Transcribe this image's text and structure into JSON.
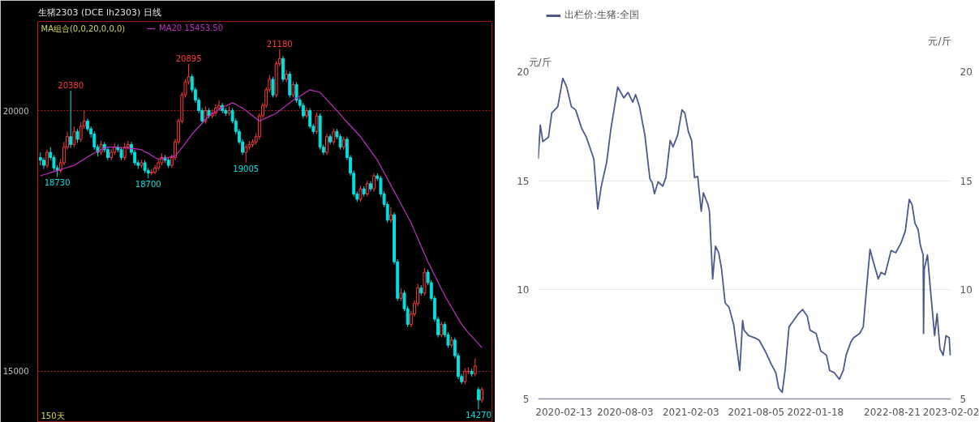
{
  "chart_data": [
    {
      "type": "candlestick",
      "title": "生猪2303 (DCE lh2303) 日线",
      "annotations": [
        "MA组合(0,0,20,0,0,0)",
        "150天"
      ],
      "categories": [
        null,
        null,
        null,
        null,
        null,
        null,
        null,
        null,
        null,
        null,
        null,
        null,
        null,
        null,
        null,
        null,
        null,
        null,
        null,
        null,
        null,
        null,
        null,
        null,
        null,
        null,
        null,
        null,
        null,
        null,
        null,
        null,
        null,
        null,
        null,
        null,
        null,
        null,
        null,
        null,
        null,
        null,
        null,
        null,
        null,
        null,
        null,
        null,
        null,
        null,
        null,
        null,
        null,
        null,
        null,
        null,
        null,
        null,
        null,
        null,
        null,
        null,
        null,
        null,
        null,
        null,
        null,
        null,
        null,
        null,
        null,
        null,
        null,
        null,
        null,
        null,
        null,
        null,
        null,
        null,
        null,
        null,
        null,
        null,
        null,
        null,
        null,
        null,
        null,
        null,
        null,
        null,
        null,
        null,
        null,
        null,
        null,
        null,
        null,
        null,
        null,
        null,
        null,
        null,
        null,
        null,
        null,
        null,
        null,
        null,
        null,
        null,
        null,
        null,
        null,
        null,
        null,
        null,
        null,
        null,
        null,
        null,
        null,
        null,
        null,
        null,
        null,
        null,
        null,
        null,
        null,
        null
      ],
      "ohlc": [
        [
          19100,
          19200,
          18950,
          19050
        ],
        [
          19050,
          19100,
          18880,
          18950
        ],
        [
          18950,
          19250,
          18900,
          19200
        ],
        [
          19200,
          19300,
          19050,
          19100
        ],
        [
          19100,
          19150,
          18850,
          18900
        ],
        [
          18900,
          18950,
          18730,
          18850
        ],
        [
          18850,
          19080,
          18800,
          19000
        ],
        [
          19000,
          19400,
          18950,
          19300
        ],
        [
          19300,
          19600,
          19250,
          19500
        ],
        [
          19500,
          20380,
          19280,
          19350
        ],
        [
          19350,
          19700,
          19300,
          19600
        ],
        [
          19600,
          19650,
          19380,
          19450
        ],
        [
          19450,
          19780,
          19400,
          19700
        ],
        [
          19700,
          20000,
          19650,
          19800
        ],
        [
          19800,
          19850,
          19600,
          19650
        ],
        [
          19650,
          19700,
          19480,
          19550
        ],
        [
          19550,
          19600,
          19250,
          19300
        ],
        [
          19300,
          19350,
          19120,
          19200
        ],
        [
          19200,
          19420,
          19150,
          19350
        ],
        [
          19350,
          19400,
          19200,
          19250
        ],
        [
          19250,
          19300,
          19050,
          19100
        ],
        [
          19100,
          19260,
          19050,
          19200
        ],
        [
          19200,
          19380,
          19150,
          19300
        ],
        [
          19300,
          19350,
          19200,
          19250
        ],
        [
          19250,
          19300,
          19050,
          19100
        ],
        [
          19100,
          19380,
          19050,
          19300
        ],
        [
          19300,
          19420,
          19250,
          19350
        ],
        [
          19350,
          19400,
          19150,
          19200
        ],
        [
          19200,
          19250,
          18950,
          19000
        ],
        [
          19000,
          19050,
          18880,
          18950
        ],
        [
          18950,
          19060,
          18900,
          19000
        ],
        [
          19000,
          19050,
          18800,
          18850
        ],
        [
          18850,
          18900,
          18700,
          18800
        ],
        [
          18800,
          18880,
          18760,
          18820
        ],
        [
          18820,
          18960,
          18780,
          18900
        ],
        [
          18900,
          19060,
          18850,
          19000
        ],
        [
          19000,
          19180,
          18950,
          19100
        ],
        [
          19100,
          19150,
          19000,
          19050
        ],
        [
          19050,
          19100,
          18900,
          18950
        ],
        [
          18950,
          19160,
          18900,
          19100
        ],
        [
          19100,
          19460,
          19050,
          19400
        ],
        [
          19400,
          19850,
          19350,
          19800
        ],
        [
          19800,
          20350,
          19750,
          20300
        ],
        [
          20300,
          20600,
          20250,
          20550
        ],
        [
          20550,
          20895,
          20500,
          20650
        ],
        [
          20650,
          20700,
          20350,
          20400
        ],
        [
          20400,
          20450,
          20150,
          20200
        ],
        [
          20200,
          20250,
          19950,
          20000
        ],
        [
          20000,
          20050,
          19750,
          19800
        ],
        [
          19800,
          20080,
          19750,
          20000
        ],
        [
          20000,
          20050,
          19850,
          19900
        ],
        [
          19900,
          20020,
          19850,
          19950
        ],
        [
          19950,
          20120,
          19900,
          20050
        ],
        [
          20050,
          20200,
          20000,
          20100
        ],
        [
          20100,
          20150,
          19950,
          20000
        ],
        [
          20000,
          20050,
          19900,
          19950
        ],
        [
          19950,
          20080,
          19900,
          20000
        ],
        [
          20000,
          20050,
          19750,
          19800
        ],
        [
          19800,
          19850,
          19550,
          19600
        ],
        [
          19600,
          19650,
          19350,
          19400
        ],
        [
          19400,
          19450,
          19150,
          19200
        ],
        [
          19200,
          19350,
          19005,
          19300
        ],
        [
          19300,
          19420,
          19250,
          19350
        ],
        [
          19350,
          19450,
          19300,
          19400
        ],
        [
          19400,
          19560,
          19350,
          19500
        ],
        [
          19500,
          19950,
          19450,
          19900
        ],
        [
          19900,
          20150,
          19850,
          20100
        ],
        [
          20100,
          20450,
          20050,
          20400
        ],
        [
          20400,
          20680,
          20350,
          20600
        ],
        [
          20600,
          20650,
          20250,
          20300
        ],
        [
          20300,
          20950,
          20250,
          20900
        ],
        [
          20900,
          21180,
          20850,
          21000
        ],
        [
          21000,
          21050,
          20550,
          20600
        ],
        [
          20600,
          20780,
          20550,
          20700
        ],
        [
          20700,
          20750,
          20250,
          20300
        ],
        [
          20300,
          20560,
          20250,
          20500
        ],
        [
          20500,
          20550,
          20150,
          20200
        ],
        [
          20200,
          20250,
          20050,
          20100
        ],
        [
          20100,
          20150,
          19850,
          19900
        ],
        [
          19900,
          20060,
          19850,
          20000
        ],
        [
          20000,
          20050,
          19650,
          19700
        ],
        [
          19700,
          19750,
          19550,
          19600
        ],
        [
          19600,
          19960,
          19550,
          19900
        ],
        [
          19900,
          19950,
          19250,
          19300
        ],
        [
          19300,
          19350,
          19150,
          19200
        ],
        [
          19200,
          19560,
          19150,
          19500
        ],
        [
          19500,
          19550,
          19350,
          19400
        ],
        [
          19400,
          19660,
          19350,
          19600
        ],
        [
          19600,
          19650,
          19450,
          19500
        ],
        [
          19500,
          19550,
          19250,
          19300
        ],
        [
          19300,
          19500,
          19250,
          19450
        ],
        [
          19450,
          19500,
          19050,
          19100
        ],
        [
          19100,
          19150,
          18750,
          18800
        ],
        [
          18800,
          18850,
          18350,
          18400
        ],
        [
          18400,
          18450,
          18250,
          18300
        ],
        [
          18300,
          18560,
          18250,
          18500
        ],
        [
          18500,
          18550,
          18350,
          18400
        ],
        [
          18400,
          18660,
          18350,
          18600
        ],
        [
          18600,
          18650,
          18450,
          18500
        ],
        [
          18500,
          18800,
          18450,
          18750
        ],
        [
          18750,
          18800,
          18650,
          18700
        ],
        [
          18700,
          18750,
          18350,
          18400
        ],
        [
          18400,
          18450,
          18150,
          18200
        ],
        [
          18200,
          18250,
          17850,
          17900
        ],
        [
          17900,
          18150,
          17850,
          18000
        ],
        [
          18000,
          18050,
          17050,
          17100
        ],
        [
          17100,
          17150,
          16350,
          16400
        ],
        [
          16400,
          16600,
          16350,
          16500
        ],
        [
          16500,
          16550,
          16150,
          16200
        ],
        [
          16200,
          16250,
          15850,
          15900
        ],
        [
          15900,
          16160,
          15850,
          16100
        ],
        [
          16100,
          16360,
          16050,
          16300
        ],
        [
          16300,
          16680,
          16250,
          16600
        ],
        [
          16600,
          16650,
          16450,
          16500
        ],
        [
          16500,
          16980,
          16450,
          16900
        ],
        [
          16900,
          16950,
          16650,
          16700
        ],
        [
          16700,
          16750,
          16350,
          16400
        ],
        [
          16400,
          16450,
          15950,
          16000
        ],
        [
          16000,
          16050,
          15650,
          15700
        ],
        [
          15700,
          15960,
          15650,
          15900
        ],
        [
          15900,
          15950,
          15650,
          15700
        ],
        [
          15700,
          15750,
          15450,
          15500
        ],
        [
          15500,
          15660,
          15450,
          15600
        ],
        [
          15600,
          15650,
          15250,
          15300
        ],
        [
          15300,
          15350,
          14850,
          14900
        ],
        [
          14900,
          14950,
          14750,
          14800
        ],
        [
          14800,
          15060,
          14750,
          15000
        ],
        [
          15000,
          15080,
          14950,
          15000
        ],
        [
          15000,
          15050,
          14900,
          14950
        ],
        [
          14950,
          15250,
          14900,
          15100
        ],
        [
          14650,
          14700,
          14270,
          14450
        ],
        [
          14450,
          14700,
          14400,
          14650
        ]
      ],
      "value_labels": [
        null,
        null,
        null,
        null,
        null,
        "18730",
        null,
        null,
        null,
        "20380",
        null,
        null,
        null,
        null,
        null,
        null,
        null,
        null,
        null,
        null,
        null,
        null,
        null,
        null,
        null,
        null,
        null,
        null,
        null,
        null,
        null,
        null,
        "18700",
        null,
        null,
        null,
        null,
        null,
        null,
        null,
        null,
        null,
        null,
        null,
        "20895",
        null,
        null,
        null,
        null,
        null,
        null,
        null,
        null,
        null,
        null,
        null,
        null,
        null,
        null,
        null,
        null,
        "19005",
        null,
        null,
        null,
        null,
        null,
        null,
        null,
        null,
        null,
        "21180",
        null,
        null,
        null,
        null,
        null,
        null,
        null,
        null,
        null,
        null,
        null,
        null,
        null,
        null,
        null,
        null,
        null,
        null,
        null,
        null,
        null,
        null,
        null,
        null,
        null,
        null,
        null,
        null,
        null,
        null,
        null,
        null,
        null,
        null,
        null,
        null,
        null,
        null,
        null,
        null,
        null,
        null,
        null,
        null,
        null,
        null,
        null,
        null,
        null,
        null,
        null,
        null,
        null,
        null,
        null,
        null,
        null,
        null,
        "14270",
        null
      ],
      "series": [
        {
          "type": "line",
          "name": "MA20 15453.50",
          "color": "#c030c0",
          "values": [
            18750,
            18770,
            18790,
            18810,
            18830,
            18850,
            18870,
            18890,
            18910,
            18930,
            18950,
            18990,
            19030,
            19070,
            19110,
            19150,
            19190,
            19220,
            19250,
            19280,
            19300,
            19300,
            19300,
            19300,
            19290,
            19290,
            19280,
            19270,
            19270,
            19260,
            19250,
            19210,
            19180,
            19140,
            19100,
            19070,
            19080,
            19090,
            19100,
            19120,
            19130,
            19210,
            19290,
            19370,
            19460,
            19550,
            19620,
            19690,
            19760,
            19830,
            19900,
            19940,
            19980,
            20020,
            20060,
            20090,
            20120,
            20150,
            20120,
            20080,
            20050,
            20000,
            19950,
            19900,
            19850,
            19800,
            19830,
            19860,
            19890,
            19920,
            19950,
            20000,
            20050,
            20100,
            20150,
            20200,
            20240,
            20280,
            20320,
            20360,
            20400,
            20380,
            20370,
            20350,
            20280,
            20210,
            20140,
            20070,
            20000,
            19930,
            19850,
            19780,
            19710,
            19640,
            19570,
            19500,
            19410,
            19320,
            19230,
            19140,
            19050,
            18930,
            18810,
            18690,
            18570,
            18450,
            18330,
            18210,
            18090,
            17970,
            17850,
            17700,
            17550,
            17400,
            17250,
            17100,
            16970,
            16840,
            16710,
            16580,
            16450,
            16340,
            16230,
            16120,
            16010,
            15900,
            15820,
            15740,
            15670,
            15600,
            15530,
            15453.5
          ]
        }
      ],
      "ylim": [
        14020,
        21710
      ],
      "yticks": [
        15000,
        20000
      ],
      "grid": "y",
      "legend": "top left",
      "tick_labels": "y"
    },
    {
      "type": "line",
      "ylabel": "元/斤",
      "y2label": "元/斤",
      "series": [
        {
          "name": "出栏价:生猪:全国",
          "color": "#4b5a8c",
          "x": [
            "2019-12-03",
            "2019-12-09",
            "2019-12-16",
            "2020-01-01",
            "2020-01-10",
            "2020-01-27",
            "2020-02-10",
            "2020-02-21",
            "2020-03-05",
            "2020-03-17",
            "2020-04-03",
            "2020-04-16",
            "2020-05-07",
            "2020-05-18",
            "2020-05-28",
            "2020-06-12",
            "2020-06-24",
            "2020-07-13",
            "2020-07-30",
            "2020-08-11",
            "2020-08-24",
            "2020-09-01",
            "2020-09-12",
            "2020-09-27",
            "2020-10-11",
            "2020-10-18",
            "2020-10-24",
            "2020-11-03",
            "2020-11-16",
            "2020-11-25",
            "2020-12-07",
            "2020-12-15",
            "2020-12-28",
            "2021-01-09",
            "2021-01-17",
            "2021-01-27",
            "2021-02-05",
            "2021-02-13",
            "2021-02-22",
            "2021-03-04",
            "2021-03-10",
            "2021-03-23",
            "2021-03-27",
            "2021-04-05",
            "2021-04-13",
            "2021-04-22",
            "2021-04-30",
            "2021-05-10",
            "2021-05-21",
            "2021-06-03",
            "2021-06-20",
            "2021-06-28",
            "2021-07-02",
            "2021-07-15",
            "2021-08-01",
            "2021-08-13",
            "2021-08-30",
            "2021-09-16",
            "2021-09-29",
            "2021-10-07",
            "2021-10-17",
            "2021-10-25",
            "2021-11-05",
            "2021-11-18",
            "2021-12-01",
            "2021-12-13",
            "2021-12-26",
            "2022-01-03",
            "2022-01-20",
            "2022-02-02",
            "2022-02-18",
            "2022-02-27",
            "2022-03-12",
            "2022-03-26",
            "2022-04-06",
            "2022-04-14",
            "2022-04-27",
            "2022-05-05",
            "2022-05-22",
            "2022-06-01",
            "2022-06-12",
            "2022-06-20",
            "2022-06-29",
            "2022-07-13",
            "2022-07-21",
            "2022-08-01",
            "2022-08-18",
            "2022-08-31",
            "2022-09-15",
            "2022-09-27",
            "2022-10-08",
            "2022-10-16",
            "2022-10-24",
            "2022-11-02",
            "2022-11-08",
            "2022-11-16",
            "2022-11-17",
            "2022-11-19",
            "2022-11-28",
            "2022-12-08",
            "2022-12-18",
            "2022-12-25",
            "2023-01-02",
            "2023-01-11",
            "2023-01-19",
            "2023-01-28",
            "2023-01-31"
          ],
          "values": [
            16.0,
            17.55,
            16.8,
            17.0,
            18.1,
            18.4,
            19.7,
            19.3,
            18.4,
            18.25,
            17.4,
            17.0,
            16.0,
            13.7,
            14.75,
            15.85,
            17.4,
            19.3,
            18.8,
            19.05,
            18.6,
            18.95,
            18.4,
            17.1,
            15.1,
            14.9,
            14.4,
            14.95,
            14.75,
            15.15,
            16.85,
            16.55,
            17.1,
            18.25,
            18.1,
            17.25,
            16.85,
            15.15,
            15.2,
            13.6,
            14.45,
            13.9,
            13.6,
            10.5,
            12.0,
            11.7,
            10.95,
            9.4,
            9.2,
            8.4,
            6.3,
            8.6,
            8.15,
            7.9,
            7.8,
            7.7,
            7.2,
            6.6,
            6.2,
            5.5,
            5.3,
            6.3,
            8.3,
            8.6,
            8.9,
            9.1,
            8.8,
            8.15,
            8.0,
            7.2,
            7.0,
            6.3,
            6.2,
            5.9,
            6.3,
            7.0,
            7.6,
            7.8,
            8.0,
            8.3,
            10.4,
            11.85,
            11.3,
            10.5,
            10.8,
            10.7,
            11.8,
            11.7,
            12.15,
            12.7,
            14.15,
            13.9,
            13.05,
            12.75,
            12.05,
            11.6,
            8.0,
            10.95,
            11.6,
            9.7,
            7.9,
            8.9,
            7.3,
            7.0,
            7.9,
            7.8,
            7.0
          ]
        }
      ],
      "xlim": [
        "2019-12-03",
        "2023-02-02"
      ],
      "xticks": [
        "2020-02-13",
        "2020-08-03",
        "2021-02-03",
        "2021-08-05",
        "2022-01-18",
        "2022-08-21",
        "2023-02-02"
      ],
      "ylim": [
        5,
        20
      ],
      "yticks": [
        5,
        10,
        15,
        20
      ],
      "y2lim": [
        5,
        20
      ],
      "y2ticks": [
        5,
        10,
        15,
        20
      ],
      "grid": "y",
      "legend": "top left"
    }
  ]
}
